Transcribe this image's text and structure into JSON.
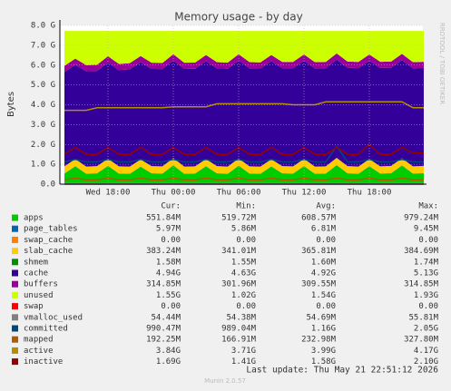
{
  "chart_data": {
    "type": "area",
    "title": "Memory usage - by day",
    "y_label": "Bytes",
    "side_label": "RRDTOOL / TOBI OETIKER",
    "categories": [
      null,
      null,
      null,
      null,
      "Wed 18:00",
      null,
      null,
      null,
      null,
      null,
      "Thu 00:00",
      null,
      null,
      null,
      null,
      null,
      "Thu 06:00",
      null,
      null,
      null,
      null,
      null,
      "Thu 12:00",
      null,
      null,
      null,
      null,
      null,
      "Thu 18:00",
      null,
      null,
      null,
      null,
      null
    ],
    "ylim": [
      0,
      8
    ],
    "yticks": [
      {
        "value": 0,
        "label": "0.0"
      },
      {
        "value": 1,
        "label": "1.0 G"
      },
      {
        "value": 2,
        "label": "2.0 G"
      },
      {
        "value": 3,
        "label": "3.0 G"
      },
      {
        "value": 4,
        "label": "4.0 G"
      },
      {
        "value": 5,
        "label": "5.0 G"
      },
      {
        "value": 6,
        "label": "6.0 G"
      },
      {
        "value": 7,
        "label": "7.0 G"
      },
      {
        "value": 8,
        "label": "8.0 G"
      }
    ],
    "grid": true,
    "stats_header": [
      "Cur:",
      "Min:",
      "Avg:",
      "Max:"
    ],
    "series": [
      {
        "name": "apps",
        "color": "#00cc00",
        "stacked": true,
        "stats": [
          "551.84M",
          "519.72M",
          "608.57M",
          "979.24M"
        ],
        "values": [
          0.53,
          0.9,
          0.52,
          0.54,
          0.92,
          0.53,
          0.52,
          0.88,
          0.54,
          0.53,
          0.95,
          0.52,
          0.53,
          0.9,
          0.54,
          0.52,
          0.93,
          0.53,
          0.52,
          0.89,
          0.54,
          0.53,
          0.91,
          0.52,
          0.53,
          0.96,
          0.54,
          0.52,
          0.9,
          0.53,
          0.55,
          0.94,
          0.53,
          0.55
        ]
      },
      {
        "name": "page_tables",
        "color": "#0066b3",
        "stacked": true,
        "stats": [
          "5.97M",
          "5.86M",
          "6.81M",
          "9.45M"
        ],
        "values": [
          0.006,
          0.006,
          0.006,
          0.006,
          0.006,
          0.006,
          0.006,
          0.006,
          0.006,
          0.006,
          0.006,
          0.006,
          0.006,
          0.006,
          0.006,
          0.006,
          0.006,
          0.006,
          0.006,
          0.006,
          0.006,
          0.006,
          0.006,
          0.006,
          0.006,
          0.006,
          0.006,
          0.006,
          0.006,
          0.006,
          0.006,
          0.006,
          0.006,
          0.006
        ]
      },
      {
        "name": "swap_cache",
        "color": "#ff8000",
        "stacked": true,
        "stats": [
          "0.00",
          "0.00",
          "0.00",
          "0.00"
        ],
        "values": [
          0,
          0,
          0,
          0,
          0,
          0,
          0,
          0,
          0,
          0,
          0,
          0,
          0,
          0,
          0,
          0,
          0,
          0,
          0,
          0,
          0,
          0,
          0,
          0,
          0,
          0,
          0,
          0,
          0,
          0,
          0,
          0,
          0,
          0
        ]
      },
      {
        "name": "slab_cache",
        "color": "#ffcc00",
        "stacked": true,
        "stats": [
          "383.24M",
          "341.01M",
          "365.81M",
          "384.69M"
        ],
        "values": [
          0.36,
          0.36,
          0.36,
          0.36,
          0.36,
          0.36,
          0.36,
          0.36,
          0.36,
          0.36,
          0.36,
          0.36,
          0.36,
          0.36,
          0.36,
          0.36,
          0.36,
          0.36,
          0.36,
          0.36,
          0.36,
          0.36,
          0.36,
          0.36,
          0.36,
          0.36,
          0.36,
          0.36,
          0.36,
          0.36,
          0.36,
          0.36,
          0.36,
          0.36
        ]
      },
      {
        "name": "shmem",
        "color": "#008f00",
        "stacked": true,
        "stats": [
          "1.58M",
          "1.55M",
          "1.60M",
          "1.74M"
        ],
        "values": [
          0.0015,
          0.0015,
          0.0015,
          0.0015,
          0.0015,
          0.0015,
          0.0015,
          0.0015,
          0.0015,
          0.0015,
          0.0015,
          0.0015,
          0.0015,
          0.0015,
          0.0015,
          0.0015,
          0.0015,
          0.0015,
          0.0015,
          0.0015,
          0.0015,
          0.0015,
          0.0015,
          0.0015,
          0.0015,
          0.0015,
          0.0015,
          0.0015,
          0.0015,
          0.0015,
          0.0015,
          0.0015,
          0.0015,
          0.0015
        ]
      },
      {
        "name": "cache",
        "color": "#330099",
        "stacked": true,
        "stats": [
          "4.94G",
          "4.63G",
          "4.92G",
          "5.13G"
        ],
        "values": [
          4.75,
          4.75,
          4.8,
          4.8,
          4.85,
          4.85,
          4.9,
          4.9,
          4.9,
          4.9,
          4.92,
          4.92,
          4.92,
          4.93,
          4.93,
          4.93,
          4.94,
          4.94,
          4.94,
          4.94,
          4.94,
          4.95,
          4.95,
          4.95,
          4.95,
          4.95,
          4.96,
          4.96,
          4.96,
          4.96,
          4.95,
          4.95,
          4.94,
          4.94
        ]
      },
      {
        "name": "buffers",
        "color": "#990099",
        "stacked": true,
        "stats": [
          "314.85M",
          "301.96M",
          "309.55M",
          "314.85M"
        ],
        "values": [
          0.31,
          0.31,
          0.31,
          0.31,
          0.31,
          0.31,
          0.31,
          0.31,
          0.31,
          0.31,
          0.31,
          0.31,
          0.31,
          0.31,
          0.31,
          0.31,
          0.31,
          0.31,
          0.31,
          0.31,
          0.31,
          0.31,
          0.31,
          0.31,
          0.31,
          0.31,
          0.31,
          0.31,
          0.31,
          0.31,
          0.31,
          0.31,
          0.31,
          0.31
        ]
      },
      {
        "name": "unused",
        "color": "#ccff00",
        "stacked": true,
        "stats": [
          "1.55G",
          "1.02G",
          "1.54G",
          "1.93G"
        ],
        "values": [
          1.76,
          1.39,
          1.72,
          1.7,
          1.27,
          1.66,
          1.62,
          1.26,
          1.6,
          1.61,
          1.17,
          1.6,
          1.59,
          1.21,
          1.57,
          1.59,
          1.17,
          1.57,
          1.58,
          1.21,
          1.56,
          1.56,
          1.18,
          1.57,
          1.56,
          1.13,
          1.54,
          1.56,
          1.18,
          1.55,
          1.54,
          1.15,
          1.57,
          1.55
        ]
      },
      {
        "name": "swap",
        "color": "#ff0000",
        "stacked": false,
        "stats": [
          "0.00",
          "0.00",
          "0.00",
          "0.00"
        ],
        "values": [
          0,
          0,
          0,
          0,
          0,
          0,
          0,
          0,
          0,
          0,
          0,
          0,
          0,
          0,
          0,
          0,
          0,
          0,
          0,
          0,
          0,
          0,
          0,
          0,
          0,
          0,
          0,
          0,
          0,
          0,
          0,
          0,
          0,
          0
        ]
      },
      {
        "name": "vmalloc_used",
        "color": "#808080",
        "stacked": false,
        "stats": [
          "54.44M",
          "54.38M",
          "54.69M",
          "55.81M"
        ],
        "values": [
          0.051,
          0.051,
          0.051,
          0.051,
          0.051,
          0.051,
          0.051,
          0.051,
          0.051,
          0.051,
          0.051,
          0.051,
          0.051,
          0.051,
          0.051,
          0.051,
          0.051,
          0.051,
          0.051,
          0.051,
          0.051,
          0.051,
          0.051,
          0.051,
          0.051,
          0.051,
          0.051,
          0.051,
          0.051,
          0.051,
          0.051,
          0.051,
          0.051,
          0.051
        ]
      },
      {
        "name": "committed",
        "color": "#00487d",
        "stacked": false,
        "stats": [
          "990.47M",
          "989.04M",
          "1.16G",
          "2.05G"
        ],
        "values": [
          1.12,
          1.25,
          1.12,
          1.12,
          1.25,
          1.12,
          1.12,
          1.25,
          1.12,
          1.12,
          1.25,
          1.12,
          1.12,
          1.25,
          1.12,
          1.12,
          1.25,
          1.12,
          1.12,
          1.25,
          1.12,
          1.12,
          1.25,
          1.12,
          1.12,
          1.9,
          1.12,
          1.12,
          1.25,
          1.12,
          1.12,
          1.25,
          1.12,
          1.12
        ]
      },
      {
        "name": "mapped",
        "color": "#b35a00",
        "stacked": false,
        "stats": [
          "192.25M",
          "166.91M",
          "232.98M",
          "327.80M"
        ],
        "values": [
          0.22,
          0.3,
          0.22,
          0.22,
          0.3,
          0.22,
          0.22,
          0.3,
          0.22,
          0.22,
          0.3,
          0.22,
          0.22,
          0.3,
          0.22,
          0.22,
          0.3,
          0.22,
          0.22,
          0.3,
          0.22,
          0.22,
          0.3,
          0.22,
          0.22,
          0.3,
          0.22,
          0.22,
          0.3,
          0.22,
          0.22,
          0.3,
          0.22,
          0.22
        ]
      },
      {
        "name": "active",
        "color": "#b38f00",
        "stacked": false,
        "stats": [
          "3.84G",
          "3.71G",
          "3.99G",
          "4.17G"
        ],
        "values": [
          3.72,
          3.72,
          3.72,
          3.85,
          3.85,
          3.85,
          3.85,
          3.85,
          3.85,
          3.85,
          3.9,
          3.9,
          3.9,
          3.9,
          4.05,
          4.05,
          4.05,
          4.05,
          4.05,
          4.05,
          4.05,
          4.0,
          4.0,
          4.0,
          4.15,
          4.15,
          4.15,
          4.15,
          4.15,
          4.15,
          4.15,
          4.15,
          3.85,
          3.85
        ]
      },
      {
        "name": "inactive",
        "color": "#990000",
        "stacked": false,
        "stats": [
          "1.69G",
          "1.41G",
          "1.58G",
          "2.10G"
        ],
        "values": [
          1.5,
          1.85,
          1.5,
          1.5,
          1.85,
          1.5,
          1.5,
          1.85,
          1.5,
          1.5,
          1.85,
          1.5,
          1.5,
          1.85,
          1.5,
          1.5,
          1.85,
          1.5,
          1.5,
          1.85,
          1.5,
          1.5,
          1.85,
          1.5,
          1.5,
          1.85,
          1.5,
          1.5,
          2.0,
          1.5,
          1.5,
          1.85,
          1.57,
          1.57
        ]
      }
    ],
    "last_update": "Last update: Thu May 21 22:51:12 2026",
    "footer": "Munin 2.0.57"
  }
}
